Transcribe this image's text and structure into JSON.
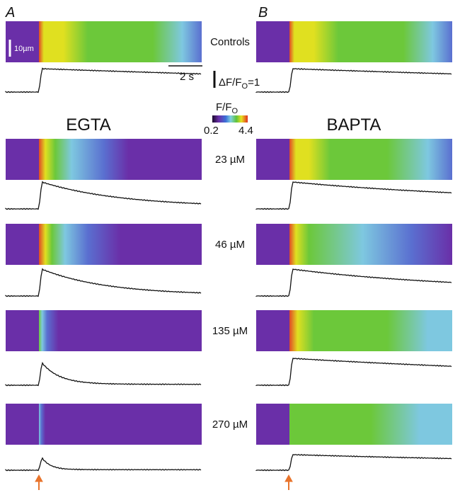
{
  "panels": [
    {
      "label": "A",
      "condition": "EGTA"
    },
    {
      "label": "B",
      "condition": "BAPTA"
    }
  ],
  "rows": [
    {
      "label": "Controls"
    },
    {
      "label": "23 µM"
    },
    {
      "label": "46 µM"
    },
    {
      "label": "135 µM"
    },
    {
      "label": "270 µM"
    }
  ],
  "scale_bars": {
    "space": "10µm",
    "time": "2 s",
    "amplitude": {
      "prefix": "ΔF/F",
      "sub": "O",
      "suffix": "=1"
    }
  },
  "colorbar": {
    "title": {
      "prefix": "F/F",
      "sub": "O"
    },
    "min_label": "0.2",
    "max_label": "4.4"
  }
}
